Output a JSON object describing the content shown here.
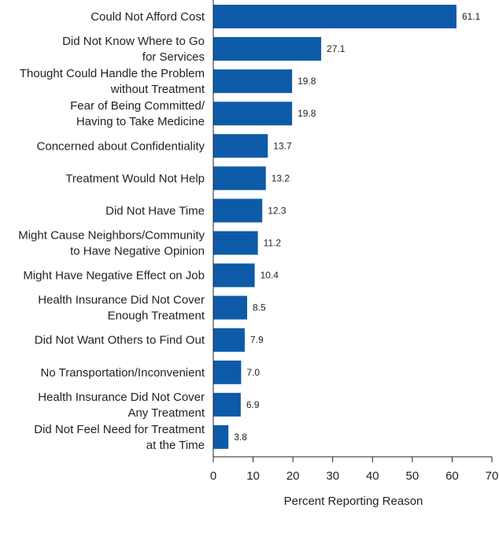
{
  "chart_data": {
    "type": "bar",
    "orientation": "horizontal",
    "title": "",
    "xlabel": "Percent Reporting Reason",
    "ylabel": "",
    "xlim": [
      0,
      70
    ],
    "xticks": [
      0,
      10,
      20,
      30,
      40,
      50,
      60,
      70
    ],
    "grid": false,
    "bar_color": "#0d5ba8",
    "categories": [
      [
        "Could Not Afford Cost"
      ],
      [
        "Did Not Know Where to Go",
        "for Services"
      ],
      [
        "Thought Could Handle the Problem",
        "without Treatment"
      ],
      [
        "Fear of Being Committed/",
        "Having to Take Medicine"
      ],
      [
        "Concerned about Confidentiality"
      ],
      [
        "Treatment Would Not Help"
      ],
      [
        "Did Not Have Time"
      ],
      [
        "Might Cause Neighbors/Community",
        "to Have Negative Opinion"
      ],
      [
        "Might Have Negative Effect on Job"
      ],
      [
        "Health Insurance Did Not Cover",
        "Enough Treatment"
      ],
      [
        "Did Not Want Others to Find Out"
      ],
      [
        "No Transportation/Inconvenient"
      ],
      [
        "Health Insurance Did Not Cover",
        "Any Treatment"
      ],
      [
        "Did Not Feel Need for Treatment",
        "at the Time"
      ]
    ],
    "values": [
      61.1,
      27.1,
      19.8,
      19.8,
      13.7,
      13.2,
      12.3,
      11.2,
      10.4,
      8.5,
      7.9,
      7.0,
      6.9,
      3.8
    ],
    "value_labels": [
      "61.1",
      "27.1",
      "19.8",
      "19.8",
      "13.7",
      "13.2",
      "12.3",
      "11.2",
      "10.4",
      "8.5",
      "7.9",
      "7.0",
      "6.9",
      "3.8"
    ]
  }
}
